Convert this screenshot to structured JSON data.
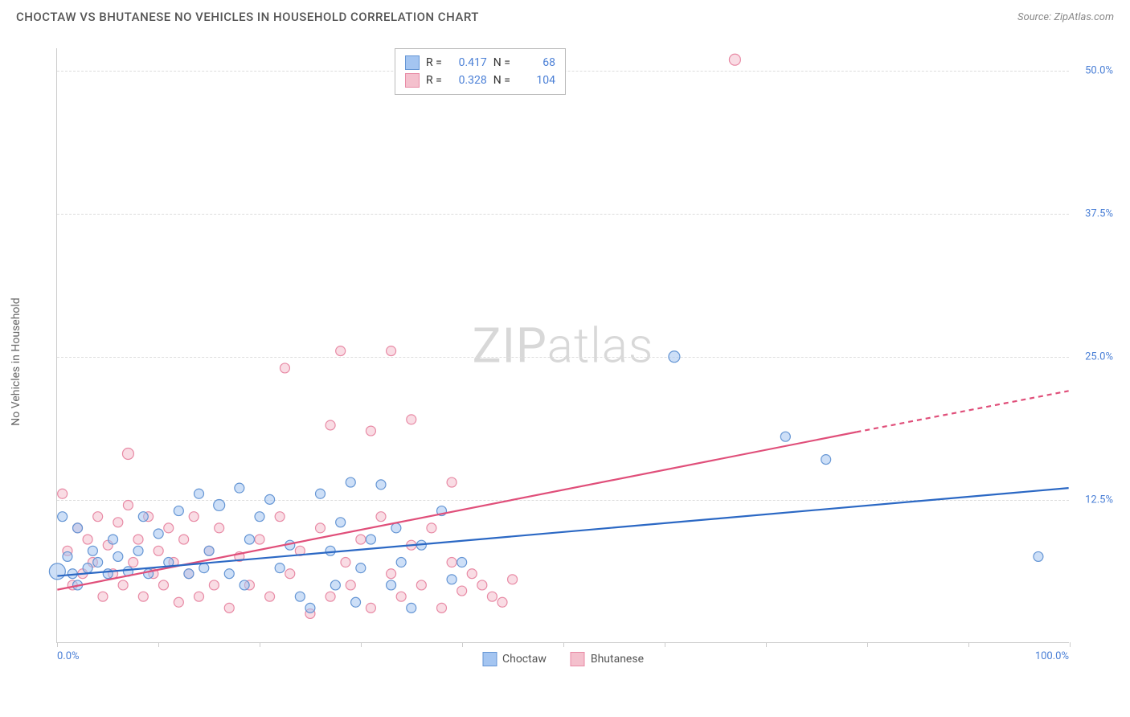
{
  "header": {
    "title": "CHOCTAW VS BHUTANESE NO VEHICLES IN HOUSEHOLD CORRELATION CHART",
    "source_label": "Source:",
    "source_value": "ZipAtlas.com"
  },
  "axes": {
    "y_label": "No Vehicles in Household",
    "x_min_label": "0.0%",
    "x_max_label": "100.0%",
    "y_ticks": [
      {
        "pct": 12.5,
        "label": "12.5%"
      },
      {
        "pct": 25.0,
        "label": "25.0%"
      },
      {
        "pct": 37.5,
        "label": "37.5%"
      },
      {
        "pct": 50.0,
        "label": "50.0%"
      }
    ],
    "x_tick_positions": [
      0,
      10,
      20,
      30,
      40,
      50,
      60,
      70,
      80,
      90,
      100
    ],
    "xlim": [
      0,
      100
    ],
    "ylim": [
      0,
      52
    ]
  },
  "watermark": {
    "bold": "ZIP",
    "light": "atlas"
  },
  "series": {
    "choctaw": {
      "name": "Choctaw",
      "R": "0.417",
      "N": "68",
      "fill": "#a4c5f1",
      "stroke": "#6495d4",
      "line_color": "#2b68c4",
      "trend": {
        "x1": 0,
        "y1": 5.8,
        "x2": 100,
        "y2": 13.5
      },
      "points": [
        {
          "x": 0,
          "y": 6.2,
          "r": 10
        },
        {
          "x": 0.5,
          "y": 11,
          "r": 6
        },
        {
          "x": 1,
          "y": 7.5,
          "r": 6
        },
        {
          "x": 1.5,
          "y": 6,
          "r": 6
        },
        {
          "x": 2,
          "y": 10,
          "r": 6
        },
        {
          "x": 2,
          "y": 5,
          "r": 6
        },
        {
          "x": 3,
          "y": 6.5,
          "r": 6
        },
        {
          "x": 3.5,
          "y": 8,
          "r": 6
        },
        {
          "x": 4,
          "y": 7,
          "r": 6
        },
        {
          "x": 5,
          "y": 6,
          "r": 6
        },
        {
          "x": 5.5,
          "y": 9,
          "r": 6
        },
        {
          "x": 6,
          "y": 7.5,
          "r": 6
        },
        {
          "x": 7,
          "y": 6.2,
          "r": 6
        },
        {
          "x": 8,
          "y": 8,
          "r": 6
        },
        {
          "x": 8.5,
          "y": 11,
          "r": 6
        },
        {
          "x": 9,
          "y": 6,
          "r": 6
        },
        {
          "x": 10,
          "y": 9.5,
          "r": 6
        },
        {
          "x": 11,
          "y": 7,
          "r": 6
        },
        {
          "x": 12,
          "y": 11.5,
          "r": 6
        },
        {
          "x": 13,
          "y": 6,
          "r": 6
        },
        {
          "x": 14,
          "y": 13,
          "r": 6
        },
        {
          "x": 14.5,
          "y": 6.5,
          "r": 6
        },
        {
          "x": 15,
          "y": 8,
          "r": 6
        },
        {
          "x": 16,
          "y": 12,
          "r": 7
        },
        {
          "x": 17,
          "y": 6,
          "r": 6
        },
        {
          "x": 18,
          "y": 13.5,
          "r": 6
        },
        {
          "x": 18.5,
          "y": 5,
          "r": 6
        },
        {
          "x": 19,
          "y": 9,
          "r": 6
        },
        {
          "x": 20,
          "y": 11,
          "r": 6
        },
        {
          "x": 21,
          "y": 12.5,
          "r": 6
        },
        {
          "x": 22,
          "y": 6.5,
          "r": 6
        },
        {
          "x": 23,
          "y": 8.5,
          "r": 6
        },
        {
          "x": 24,
          "y": 4,
          "r": 6
        },
        {
          "x": 25,
          "y": 3,
          "r": 6
        },
        {
          "x": 26,
          "y": 13,
          "r": 6
        },
        {
          "x": 27,
          "y": 8,
          "r": 6
        },
        {
          "x": 27.5,
          "y": 5,
          "r": 6
        },
        {
          "x": 28,
          "y": 10.5,
          "r": 6
        },
        {
          "x": 29,
          "y": 14,
          "r": 6
        },
        {
          "x": 29.5,
          "y": 3.5,
          "r": 6
        },
        {
          "x": 30,
          "y": 6.5,
          "r": 6
        },
        {
          "x": 31,
          "y": 9,
          "r": 6
        },
        {
          "x": 32,
          "y": 13.8,
          "r": 6
        },
        {
          "x": 33,
          "y": 5,
          "r": 6
        },
        {
          "x": 33.5,
          "y": 10,
          "r": 6
        },
        {
          "x": 34,
          "y": 7,
          "r": 6
        },
        {
          "x": 35,
          "y": 3,
          "r": 6
        },
        {
          "x": 36,
          "y": 8.5,
          "r": 6
        },
        {
          "x": 38,
          "y": 11.5,
          "r": 6
        },
        {
          "x": 39,
          "y": 5.5,
          "r": 6
        },
        {
          "x": 40,
          "y": 7,
          "r": 6
        },
        {
          "x": 61,
          "y": 25,
          "r": 7
        },
        {
          "x": 72,
          "y": 18,
          "r": 6
        },
        {
          "x": 76,
          "y": 16,
          "r": 6
        },
        {
          "x": 97,
          "y": 7.5,
          "r": 6
        }
      ]
    },
    "bhutanese": {
      "name": "Bhutanese",
      "R": "0.328",
      "N": "104",
      "fill": "#f4c0cd",
      "stroke": "#e88aa5",
      "line_color": "#e04f7a",
      "trend": {
        "x1": 0,
        "y1": 4.6,
        "x2": 79,
        "y2": 18.4
      },
      "trend_extrap": {
        "x1": 79,
        "y1": 18.4,
        "x2": 100,
        "y2": 22.0
      },
      "points": [
        {
          "x": 0.5,
          "y": 13,
          "r": 6
        },
        {
          "x": 1,
          "y": 8,
          "r": 6
        },
        {
          "x": 1.5,
          "y": 5,
          "r": 6
        },
        {
          "x": 2,
          "y": 10,
          "r": 6
        },
        {
          "x": 2.5,
          "y": 6,
          "r": 6
        },
        {
          "x": 3,
          "y": 9,
          "r": 6
        },
        {
          "x": 3.5,
          "y": 7,
          "r": 6
        },
        {
          "x": 4,
          "y": 11,
          "r": 6
        },
        {
          "x": 4.5,
          "y": 4,
          "r": 6
        },
        {
          "x": 5,
          "y": 8.5,
          "r": 6
        },
        {
          "x": 5.5,
          "y": 6,
          "r": 6
        },
        {
          "x": 6,
          "y": 10.5,
          "r": 6
        },
        {
          "x": 6.5,
          "y": 5,
          "r": 6
        },
        {
          "x": 7,
          "y": 12,
          "r": 6
        },
        {
          "x": 7,
          "y": 16.5,
          "r": 7
        },
        {
          "x": 7.5,
          "y": 7,
          "r": 6
        },
        {
          "x": 8,
          "y": 9,
          "r": 6
        },
        {
          "x": 8.5,
          "y": 4,
          "r": 6
        },
        {
          "x": 9,
          "y": 11,
          "r": 6
        },
        {
          "x": 9.5,
          "y": 6,
          "r": 6
        },
        {
          "x": 10,
          "y": 8,
          "r": 6
        },
        {
          "x": 10.5,
          "y": 5,
          "r": 6
        },
        {
          "x": 11,
          "y": 10,
          "r": 6
        },
        {
          "x": 11.5,
          "y": 7,
          "r": 6
        },
        {
          "x": 12,
          "y": 3.5,
          "r": 6
        },
        {
          "x": 12.5,
          "y": 9,
          "r": 6
        },
        {
          "x": 13,
          "y": 6,
          "r": 6
        },
        {
          "x": 13.5,
          "y": 11,
          "r": 6
        },
        {
          "x": 14,
          "y": 4,
          "r": 6
        },
        {
          "x": 15,
          "y": 8,
          "r": 6
        },
        {
          "x": 15.5,
          "y": 5,
          "r": 6
        },
        {
          "x": 16,
          "y": 10,
          "r": 6
        },
        {
          "x": 17,
          "y": 3,
          "r": 6
        },
        {
          "x": 18,
          "y": 7.5,
          "r": 6
        },
        {
          "x": 19,
          "y": 5,
          "r": 6
        },
        {
          "x": 20,
          "y": 9,
          "r": 6
        },
        {
          "x": 21,
          "y": 4,
          "r": 6
        },
        {
          "x": 22,
          "y": 11,
          "r": 6
        },
        {
          "x": 22.5,
          "y": 24,
          "r": 6
        },
        {
          "x": 23,
          "y": 6,
          "r": 6
        },
        {
          "x": 24,
          "y": 8,
          "r": 6
        },
        {
          "x": 25,
          "y": 2.5,
          "r": 6
        },
        {
          "x": 26,
          "y": 10,
          "r": 6
        },
        {
          "x": 27,
          "y": 4,
          "r": 6
        },
        {
          "x": 27,
          "y": 19,
          "r": 6
        },
        {
          "x": 28,
          "y": 25.5,
          "r": 6
        },
        {
          "x": 28.5,
          "y": 7,
          "r": 6
        },
        {
          "x": 29,
          "y": 5,
          "r": 6
        },
        {
          "x": 30,
          "y": 9,
          "r": 6
        },
        {
          "x": 31,
          "y": 3,
          "r": 6
        },
        {
          "x": 31,
          "y": 18.5,
          "r": 6
        },
        {
          "x": 32,
          "y": 11,
          "r": 6
        },
        {
          "x": 33,
          "y": 6,
          "r": 6
        },
        {
          "x": 33,
          "y": 25.5,
          "r": 6
        },
        {
          "x": 34,
          "y": 4,
          "r": 6
        },
        {
          "x": 35,
          "y": 8.5,
          "r": 6
        },
        {
          "x": 35,
          "y": 19.5,
          "r": 6
        },
        {
          "x": 36,
          "y": 5,
          "r": 6
        },
        {
          "x": 37,
          "y": 10,
          "r": 6
        },
        {
          "x": 38,
          "y": 3,
          "r": 6
        },
        {
          "x": 39,
          "y": 7,
          "r": 6
        },
        {
          "x": 39,
          "y": 14,
          "r": 6
        },
        {
          "x": 40,
          "y": 4.5,
          "r": 6
        },
        {
          "x": 41,
          "y": 6,
          "r": 6
        },
        {
          "x": 42,
          "y": 5,
          "r": 6
        },
        {
          "x": 43,
          "y": 4,
          "r": 6
        },
        {
          "x": 44,
          "y": 3.5,
          "r": 6
        },
        {
          "x": 45,
          "y": 5.5,
          "r": 6
        },
        {
          "x": 67,
          "y": 51,
          "r": 7
        }
      ]
    }
  },
  "legend_bottom": [
    {
      "key": "choctaw"
    },
    {
      "key": "bhutanese"
    }
  ],
  "chart_style": {
    "bg": "#ffffff",
    "grid_color": "#dddddd",
    "axis_color": "#cccccc",
    "tick_label_color": "#4a7fd6",
    "title_color": "#555555",
    "point_opacity": 0.55
  }
}
